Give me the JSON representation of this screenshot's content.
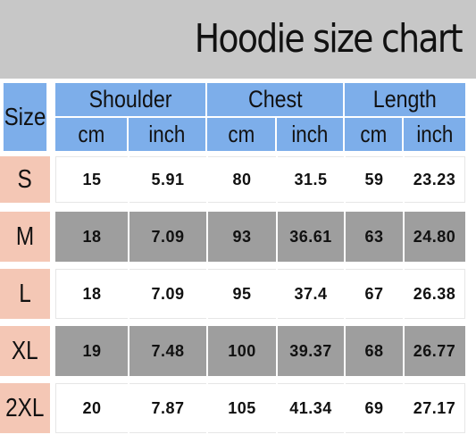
{
  "title": "Hoodie size chart",
  "header": {
    "size_label": "Size",
    "groups": [
      "Shoulder",
      "Chest",
      "Length"
    ],
    "units": [
      "cm",
      "inch",
      "cm",
      "inch",
      "cm",
      "inch"
    ]
  },
  "rows": [
    {
      "size": "S",
      "values": [
        "15",
        "5.91",
        "80",
        "31.5",
        "59",
        "23.23"
      ]
    },
    {
      "size": "M",
      "values": [
        "18",
        "7.09",
        "93",
        "36.61",
        "63",
        "24.80"
      ]
    },
    {
      "size": "L",
      "values": [
        "18",
        "7.09",
        "95",
        "37.4",
        "67",
        "26.38"
      ]
    },
    {
      "size": "XL",
      "values": [
        "19",
        "7.48",
        "100",
        "39.37",
        "68",
        "26.77"
      ]
    },
    {
      "size": "2XL",
      "values": [
        "20",
        "7.87",
        "105",
        "41.34",
        "69",
        "27.17"
      ]
    }
  ],
  "colors": {
    "banner": "#c7c7c7",
    "header": "#7daeea",
    "size_column": "#f4c7b5",
    "row_alternate": "#9e9e9e",
    "row_default": "#ffffff"
  }
}
